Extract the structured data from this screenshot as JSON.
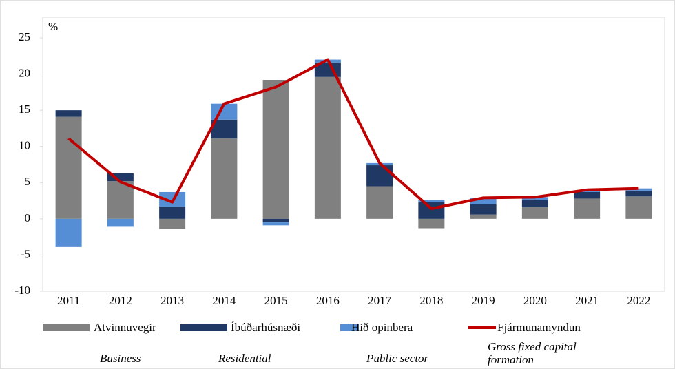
{
  "chart_data": {
    "type": "bar",
    "stacked": true,
    "y_label": "%",
    "categories": [
      "2011",
      "2012",
      "2013",
      "2014",
      "2015",
      "2016",
      "2017",
      "2018",
      "2019",
      "2020",
      "2021",
      "2022"
    ],
    "series": [
      {
        "name": "Atvinnuvegir",
        "subtitle": "Business",
        "color": "#808080",
        "values": [
          14.1,
          5.2,
          -1.4,
          11.1,
          19.2,
          19.6,
          4.5,
          -1.3,
          0.6,
          1.6,
          2.8,
          3.1
        ]
      },
      {
        "name": "Íbúðarhúsnæði",
        "subtitle": "Residential",
        "color": "#1f3864",
        "values": [
          0.9,
          1.1,
          1.7,
          2.6,
          -0.5,
          2.0,
          2.9,
          2.3,
          1.4,
          1.0,
          0.9,
          0.8
        ]
      },
      {
        "name": "Hið opinbera",
        "subtitle": "Public sector",
        "color": "#558ed5",
        "values": [
          -3.9,
          -1.1,
          2.0,
          2.2,
          -0.4,
          0.4,
          0.3,
          0.3,
          0.9,
          0.4,
          0.2,
          0.3
        ]
      },
      {
        "name": "Fjármunamyndun",
        "subtitle": "Gross fixed capital formation",
        "color": "#c00000",
        "type": "line",
        "values": [
          11.1,
          5.1,
          2.3,
          15.9,
          18.2,
          22.0,
          7.7,
          1.4,
          2.9,
          3.0,
          4.0,
          4.2
        ]
      }
    ],
    "ylim": [
      -10,
      25
    ],
    "yticks": [
      -10,
      -5,
      0,
      5,
      10,
      15,
      20,
      25
    ]
  }
}
